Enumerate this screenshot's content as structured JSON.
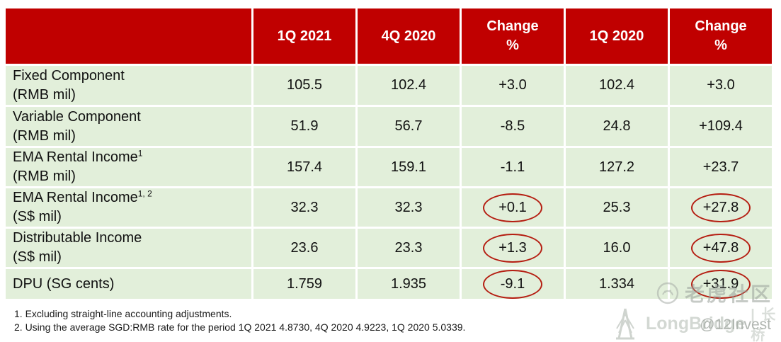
{
  "table": {
    "header": [
      "",
      "1Q 2021",
      "4Q 2020",
      "Change\n%",
      "1Q 2020",
      "Change\n%"
    ],
    "rows": [
      {
        "label": "Fixed Component",
        "sup": "",
        "unit": "(RMB mil)",
        "values": [
          "105.5",
          "102.4",
          "+3.0",
          "102.4",
          "+3.0"
        ],
        "circled": [
          false,
          false,
          false,
          false,
          false
        ]
      },
      {
        "label": "Variable Component",
        "sup": "",
        "unit": "(RMB mil)",
        "values": [
          "51.9",
          "56.7",
          "-8.5",
          "24.8",
          "+109.4"
        ],
        "circled": [
          false,
          false,
          false,
          false,
          false
        ]
      },
      {
        "label": "EMA Rental Income",
        "sup": "1",
        "unit": "(RMB mil)",
        "values": [
          "157.4",
          "159.1",
          "-1.1",
          "127.2",
          "+23.7"
        ],
        "circled": [
          false,
          false,
          false,
          false,
          false
        ]
      },
      {
        "label": "EMA Rental Income",
        "sup": "1, 2",
        "unit": "(S$ mil)",
        "values": [
          "32.3",
          "32.3",
          "+0.1",
          "25.3",
          "+27.8"
        ],
        "circled": [
          false,
          false,
          true,
          false,
          true
        ]
      },
      {
        "label": "Distributable Income",
        "sup": "",
        "unit": "(S$ mil)",
        "values": [
          "23.6",
          "23.3",
          "+1.3",
          "16.0",
          "+47.8"
        ],
        "circled": [
          false,
          false,
          true,
          false,
          true
        ]
      },
      {
        "label": "DPU (SG cents)",
        "sup": "",
        "unit": "",
        "values": [
          "1.759",
          "1.935",
          "-9.1",
          "1.334",
          "+31.9"
        ],
        "circled": [
          false,
          false,
          true,
          false,
          true
        ]
      }
    ]
  },
  "footnotes": [
    "1. Excluding straight-line accounting adjustments.",
    "2. Using the average SGD:RMB rate for the period 1Q 2021 4.8730, 4Q 2020 4.9223, 1Q 2020 5.0339."
  ],
  "watermark": {
    "community": "老虎社区",
    "brand": "LongBridge",
    "brand_suffix": "| 长桥",
    "handle": "@12Invest"
  },
  "colors": {
    "header_bg": "#c00000",
    "row_bg": "#e2efda",
    "circle": "#b51e12",
    "header_text": "#ffffff",
    "body_text": "#111111"
  }
}
